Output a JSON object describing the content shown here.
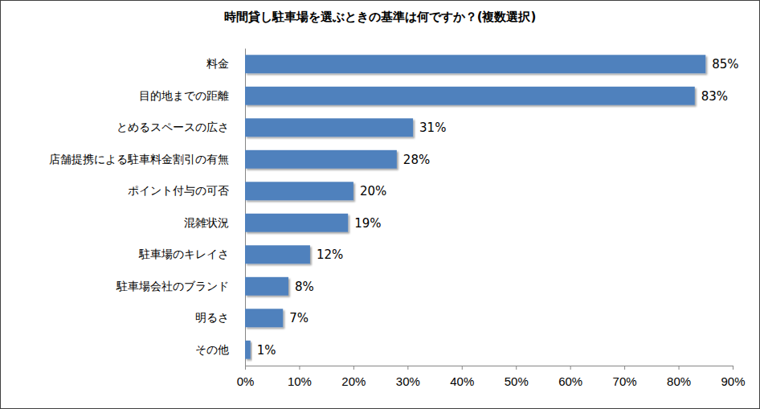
{
  "chart_data": {
    "type": "bar",
    "title": "時間貸し駐車場を選ぶときの基準は何ですか？(複数選択)",
    "orientation": "horizontal",
    "categories": [
      "料金",
      "目的地までの距離",
      "とめるスペースの広さ",
      "店舗提携による駐車料金割引の有無",
      "ポイント付与の可否",
      "混雑状況",
      "駐車場のキレイさ",
      "駐車場会社のブランド",
      "明るさ",
      "その他"
    ],
    "values": [
      85,
      83,
      31,
      28,
      20,
      19,
      12,
      8,
      7,
      1
    ],
    "value_labels": [
      "85%",
      "83%",
      "31%",
      "28%",
      "20%",
      "19%",
      "12%",
      "8%",
      "7%",
      "1%"
    ],
    "color": "#4f81bd",
    "xlim": [
      0,
      90
    ],
    "xticks": [
      {
        "value": 0,
        "label": "0%"
      },
      {
        "value": 10,
        "label": "10%"
      },
      {
        "value": 20,
        "label": "20%"
      },
      {
        "value": 30,
        "label": "30%"
      },
      {
        "value": 40,
        "label": "40%"
      },
      {
        "value": 50,
        "label": "50%"
      },
      {
        "value": 60,
        "label": "60%"
      },
      {
        "value": 70,
        "label": "70%"
      },
      {
        "value": 80,
        "label": "80%"
      },
      {
        "value": 90,
        "label": "90%"
      }
    ],
    "grid": false,
    "data_labels": true
  }
}
